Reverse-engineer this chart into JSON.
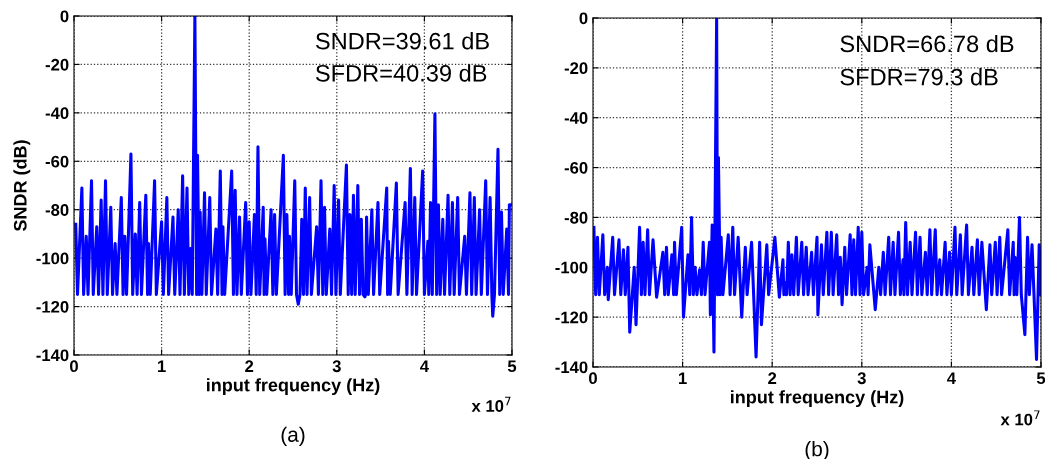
{
  "chart_data": [
    {
      "type": "line",
      "title": "(a)",
      "xlabel": "input frequency (Hz)",
      "ylabel": "SNDR (dB)",
      "annotations": [
        "SNDR=39.61 dB",
        "SFDR=40.39 dB",
        "x 10$^{7}$"
      ],
      "xlim": [
        0,
        5
      ],
      "xticks": [
        0,
        1,
        2,
        3,
        4,
        5
      ],
      "ylim": [
        -140,
        0
      ],
      "yticks": [
        -140,
        -120,
        -100,
        -80,
        -60,
        -40,
        -20,
        0
      ],
      "grid": true,
      "legend": false,
      "marker": "none",
      "line_style": "solid",
      "series": [
        {
          "color": "#0000ff",
          "x": [
            0.02,
            0.04,
            0.09,
            0.11,
            0.14,
            0.16,
            0.2,
            0.22,
            0.26,
            0.28,
            0.31,
            0.33,
            0.36,
            0.38,
            0.42,
            0.44,
            0.47,
            0.49,
            0.54,
            0.56,
            0.58,
            0.6,
            0.65,
            0.67,
            0.7,
            0.72,
            0.75,
            0.77,
            0.82,
            0.84,
            0.85,
            0.87,
            0.92,
            0.94,
            1.0,
            1.02,
            1.06,
            1.08,
            1.13,
            1.15,
            1.19,
            1.21,
            1.24,
            1.26,
            1.29,
            1.31,
            1.33,
            1.35,
            1.38,
            1.4,
            1.41,
            1.43,
            1.44,
            1.46,
            1.49,
            1.51,
            1.55,
            1.57,
            1.62,
            1.64,
            1.67,
            1.69,
            1.7,
            1.72,
            1.8,
            1.82,
            1.84,
            1.86,
            1.89,
            1.91,
            1.96,
            1.98,
            2.0,
            2.02,
            2.06,
            2.08,
            2.1,
            2.12,
            2.16,
            2.17,
            2.18,
            2.2,
            2.25,
            2.27,
            2.29,
            2.31,
            2.39,
            2.41,
            2.43,
            2.45,
            2.46,
            2.48,
            2.52,
            2.54,
            2.56,
            2.58,
            2.6,
            2.62,
            2.64,
            2.66,
            2.69,
            2.71,
            2.77,
            2.79,
            2.82,
            2.84,
            2.86,
            2.88,
            2.92,
            2.94,
            2.97,
            2.99,
            3.02,
            3.04,
            3.11,
            3.13,
            3.15,
            3.17,
            3.19,
            3.21,
            3.24,
            3.26,
            3.28,
            3.3,
            3.32,
            3.33,
            3.34,
            3.36,
            3.4,
            3.42,
            3.47,
            3.49,
            3.57,
            3.58,
            3.59,
            3.61,
            3.68,
            3.7,
            3.78,
            3.8,
            3.84,
            3.86,
            3.89,
            3.91,
            3.98,
            4.0,
            4.04,
            4.05,
            4.07,
            4.09,
            4.12,
            4.14,
            4.16,
            4.18,
            4.21,
            4.23,
            4.27,
            4.29,
            4.32,
            4.34,
            4.38,
            4.4,
            4.46,
            4.48,
            4.52,
            4.54,
            4.57,
            4.59,
            4.63,
            4.65,
            4.7,
            4.72,
            4.75,
            4.77,
            4.78,
            4.8,
            4.84,
            4.86,
            4.88,
            4.9,
            4.94,
            4.96,
            4.97,
            5.0
          ],
          "values": [
            -86,
            -115,
            -71,
            -115,
            -91,
            -115,
            -68,
            -115,
            -87,
            -115,
            -76,
            -115,
            -68,
            -115,
            -79,
            -115,
            -94,
            -115,
            -75,
            -115,
            -91,
            -115,
            -57,
            -115,
            -90,
            -115,
            -77,
            -115,
            -74,
            -115,
            -94,
            -115,
            -68,
            -115,
            -85,
            -115,
            -75,
            -115,
            -83,
            -115,
            -80,
            -115,
            -66,
            -115,
            -71,
            -115,
            -96,
            -115,
            0,
            -115,
            -57.5,
            -115,
            -81,
            -115,
            -73,
            -115,
            -75,
            -115,
            -88,
            -115,
            -64,
            -115,
            -87,
            -115,
            -64,
            -115,
            -72,
            -115,
            -83,
            -115,
            -77,
            -115,
            -85,
            -115,
            -82,
            -115,
            -54,
            -115,
            -79,
            -115,
            -92,
            -115,
            -80,
            -115,
            -82,
            -115,
            -57.5,
            -115,
            -82,
            -115,
            -91,
            -115,
            -68,
            -115,
            -119,
            -115,
            -84,
            -115,
            -71,
            -115,
            -75,
            -115,
            -87,
            -115,
            -68,
            -115,
            -79,
            -115,
            -88,
            -115,
            -70,
            -115,
            -76,
            -115,
            -61.5,
            -115,
            -82,
            -115,
            -74,
            -115,
            -70,
            -115,
            -84,
            -115,
            -116,
            -115,
            -83,
            -115,
            -80,
            -115,
            -77,
            -115,
            -71,
            -115,
            -93,
            -115,
            -69,
            -115,
            -77,
            -115,
            -63,
            -115,
            -75,
            -115,
            -64,
            -115,
            -93,
            -115,
            -77,
            -115,
            -40.4,
            -115,
            -78,
            -115,
            -84,
            -115,
            -74,
            -115,
            -77,
            -115,
            -75,
            -115,
            -91,
            -115,
            -73,
            -115,
            -75,
            -115,
            -80,
            -115,
            -68,
            -115,
            -75,
            -115,
            -124,
            -115,
            -55,
            -115,
            -81,
            -115,
            -88,
            -115,
            -78,
            -78
          ]
        }
      ]
    },
    {
      "type": "line",
      "title": "(b)",
      "xlabel": "input frequency (Hz)",
      "annotations": [
        "SNDR=66.78 dB",
        "SFDR=79.3 dB",
        "x 10$^{7}$"
      ],
      "xlim": [
        0,
        5
      ],
      "xticks": [
        0,
        1,
        2,
        3,
        4,
        5
      ],
      "ylim": [
        -140,
        0
      ],
      "yticks": [
        -140,
        -120,
        -100,
        -80,
        -60,
        -40,
        -20,
        0
      ],
      "grid": true,
      "legend": false,
      "marker": "none",
      "line_style": "solid",
      "series": [
        {
          "color": "#0000ff",
          "x": [
            0.01,
            0.03,
            0.05,
            0.07,
            0.11,
            0.13,
            0.16,
            0.17,
            0.22,
            0.24,
            0.29,
            0.31,
            0.34,
            0.36,
            0.39,
            0.41,
            0.46,
            0.48,
            0.52,
            0.54,
            0.56,
            0.58,
            0.61,
            0.63,
            0.67,
            0.71,
            0.78,
            0.8,
            0.82,
            0.84,
            0.88,
            0.9,
            0.91,
            0.93,
            0.99,
            1.01,
            1.06,
            1.08,
            1.1,
            1.12,
            1.14,
            1.16,
            1.19,
            1.21,
            1.23,
            1.25,
            1.3,
            1.31,
            1.33,
            1.35,
            1.38,
            1.39,
            1.4,
            1.42,
            1.43,
            1.45,
            1.51,
            1.53,
            1.56,
            1.58,
            1.62,
            1.66,
            1.7,
            1.72,
            1.77,
            1.82,
            1.86,
            1.88,
            1.94,
            1.96,
            2.03,
            2.08,
            2.12,
            2.13,
            2.14,
            2.16,
            2.18,
            2.2,
            2.22,
            2.24,
            2.27,
            2.29,
            2.33,
            2.35,
            2.38,
            2.4,
            2.44,
            2.46,
            2.5,
            2.51,
            2.55,
            2.57,
            2.61,
            2.63,
            2.66,
            2.68,
            2.72,
            2.74,
            2.76,
            2.78,
            2.81,
            2.83,
            2.87,
            2.89,
            2.91,
            2.93,
            2.96,
            2.98,
            3.0,
            3.02,
            3.06,
            3.07,
            3.09,
            3.15,
            3.19,
            3.21,
            3.24,
            3.26,
            3.3,
            3.32,
            3.35,
            3.37,
            3.41,
            3.43,
            3.46,
            3.47,
            3.49,
            3.51,
            3.54,
            3.56,
            3.6,
            3.62,
            3.65,
            3.67,
            3.71,
            3.73,
            3.76,
            3.78,
            3.82,
            3.84,
            3.87,
            3.89,
            3.93,
            3.95,
            3.98,
            4.0,
            4.04,
            4.06,
            4.1,
            4.12,
            4.17,
            4.19,
            4.23,
            4.25,
            4.29,
            4.31,
            4.34,
            4.39,
            4.43,
            4.45,
            4.49,
            4.51,
            4.54,
            4.56,
            4.63,
            4.65,
            4.69,
            4.7,
            4.71,
            4.73,
            4.76,
            4.78,
            4.82,
            4.85,
            4.87,
            4.9,
            4.95,
            4.98,
            5.0
          ],
          "values": [
            -84,
            -111,
            -88,
            -111,
            -87,
            -111,
            -100,
            -113,
            -88,
            -111,
            -89,
            -111,
            -93,
            -111,
            -92,
            -126,
            -100,
            -123,
            -84,
            -111,
            -90,
            -111,
            -85,
            -111,
            -89,
            -112,
            -94,
            -111,
            -92,
            -111,
            -95,
            -111,
            -90,
            -111,
            -84,
            -120,
            -95,
            -111,
            -80,
            -111,
            -100,
            -111,
            -101,
            -111,
            -90,
            -111,
            -90,
            -119,
            -83,
            -134,
            0,
            -111,
            -56,
            -111,
            -88,
            -111,
            -87,
            -111,
            -84,
            -111,
            -88,
            -120,
            -92,
            -111,
            -90,
            -136,
            -90,
            -123,
            -91,
            -111,
            -88,
            -112,
            -97,
            -111,
            -106,
            -111,
            -90,
            -111,
            -95,
            -111,
            -88,
            -111,
            -90,
            -111,
            -92,
            -111,
            -94,
            -111,
            -88,
            -119,
            -91,
            -111,
            -86,
            -111,
            -86,
            -111,
            -87,
            -111,
            -96,
            -115,
            -92,
            -111,
            -87,
            -111,
            -89,
            -111,
            -84,
            -111,
            -86,
            -111,
            -100,
            -111,
            -91,
            -117,
            -100,
            -111,
            -94,
            -111,
            -88,
            -111,
            -90,
            -111,
            -86,
            -111,
            -97,
            -111,
            -82,
            -111,
            -90,
            -111,
            -86,
            -111,
            -88,
            -111,
            -94,
            -111,
            -85,
            -111,
            -85,
            -111,
            -97,
            -111,
            -90,
            -111,
            -94,
            -111,
            -84,
            -111,
            -87,
            -111,
            -83,
            -111,
            -92,
            -111,
            -89,
            -111,
            -90,
            -117,
            -91,
            -111,
            -90,
            -111,
            -88,
            -111,
            -85,
            -111,
            -90,
            -111,
            -96,
            -111,
            -80,
            -111,
            -127,
            -88,
            -111,
            -91,
            -137,
            -91,
            -111
          ]
        }
      ]
    }
  ]
}
